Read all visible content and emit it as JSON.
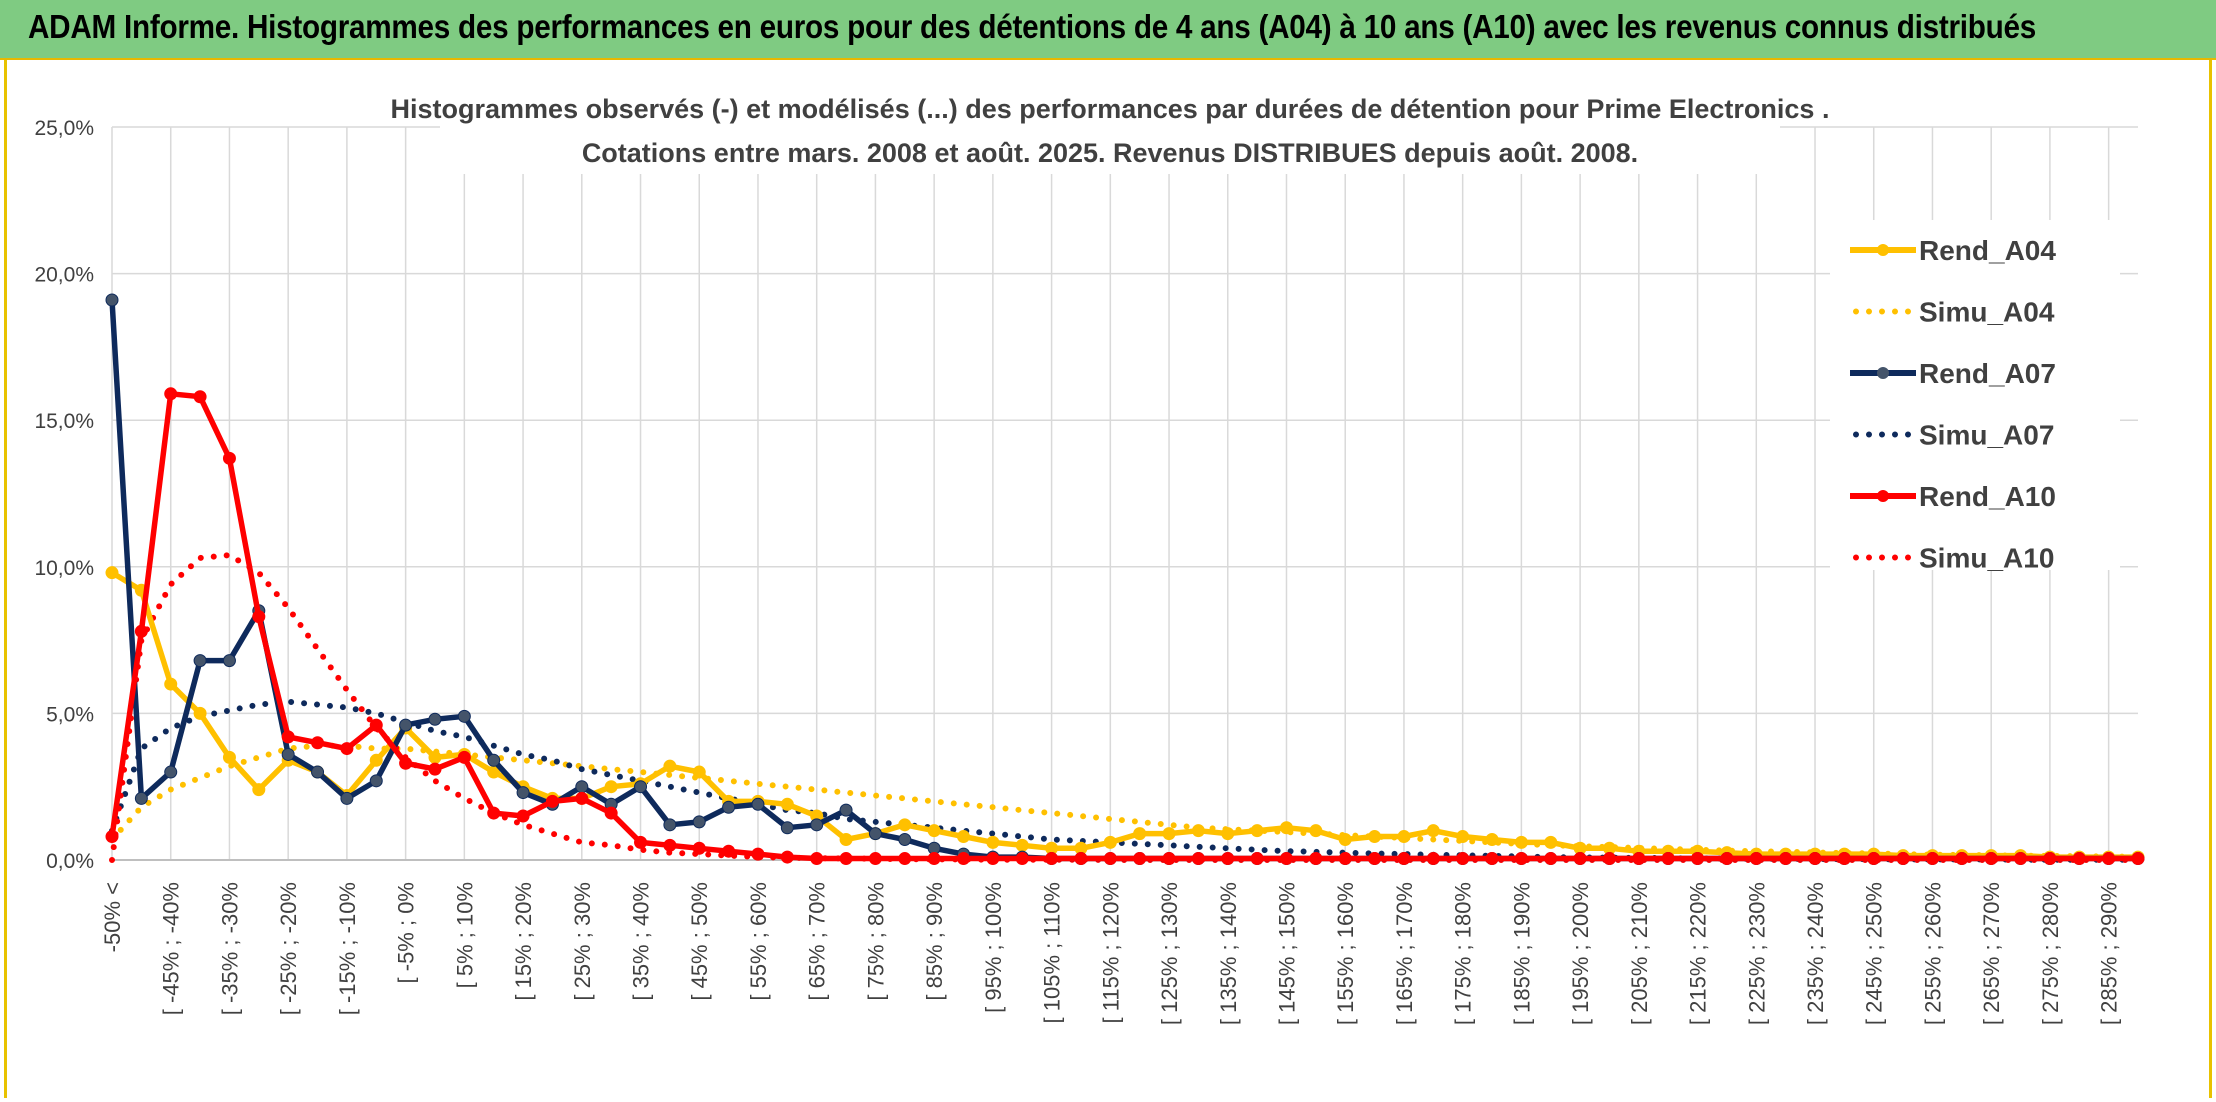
{
  "header": {
    "title": "ADAM Informe. Histogrammes des performances en euros pour des détentions de 4 ans (A04) à 10 ans (A10) avec les revenus connus distribués"
  },
  "chart_data": {
    "type": "line",
    "title_line1": "Histogrammes observés (-) et modélisés (...) des performances par durées de détention pour Prime Electronics .",
    "title_line2": "Cotations entre mars. 2008 et août. 2025. Revenus DISTRIBUES depuis août. 2008.",
    "ylim": [
      0,
      25
    ],
    "y_ticks": [
      "0,0%",
      "5,0%",
      "10,0%",
      "15,0%",
      "20,0%",
      "25,0%"
    ],
    "y_tick_values": [
      0,
      5,
      10,
      15,
      20,
      25
    ],
    "grid": true,
    "legend_position": "right",
    "x_labels": [
      "-50% <",
      "[ -45% ; -40%",
      "[ -35% ; -30%",
      "[ -25% ; -20%",
      "[ -15% ; -10%",
      "[ -5% ; 0%",
      "[ 5% ; 10%",
      "[ 15% ; 20%",
      "[ 25% ; 30%",
      "[ 35% ; 40%",
      "[ 45% ; 50%",
      "[ 55% ; 60%",
      "[ 65% ; 70%",
      "[ 75% ; 80%",
      "[ 85% ; 90%",
      "[ 95% ; 100%",
      "[ 105% ; 110%",
      "[ 115% ; 120%",
      "[ 125% ; 130%",
      "[ 135% ; 140%",
      "[ 145% ; 150%",
      "[ 155% ; 160%",
      "[ 165% ; 170%",
      "[ 175% ; 180%",
      "[ 185% ; 190%",
      "[ 195% ; 200%",
      "[ 205% ; 210%",
      "[ 215% ; 220%",
      "[ 225% ; 230%",
      "[ 235% ; 240%",
      "[ 245% ; 250%",
      "[ 255% ; 260%",
      "[ 265% ; 270%",
      "[ 275% ; 280%",
      "[ 285% ; 290%"
    ],
    "series": [
      {
        "name": "Rend_A04",
        "style": "solid",
        "color": "#ffc000",
        "values": [
          9.8,
          9.2,
          6.0,
          5.0,
          3.5,
          2.4,
          3.4,
          3.0,
          2.2,
          3.4,
          4.5,
          3.5,
          3.6,
          3.0,
          2.5,
          2.1,
          2.1,
          2.5,
          2.6,
          3.2,
          3.0,
          2.0,
          2.0,
          1.9,
          1.5,
          0.7,
          0.9,
          1.2,
          1.0,
          0.8,
          0.6,
          0.5,
          0.4,
          0.4,
          0.6,
          0.9,
          0.9,
          1.0,
          0.9,
          1.0,
          1.1,
          1.0,
          0.7,
          0.8,
          0.8,
          1.0,
          0.8,
          0.7,
          0.6,
          0.6,
          0.4,
          0.4,
          0.3,
          0.3,
          0.3,
          0.25,
          0.2,
          0.2,
          0.2,
          0.2,
          0.2,
          0.15,
          0.15,
          0.15,
          0.15,
          0.15,
          0.1,
          0.1,
          0.1,
          0.1
        ]
      },
      {
        "name": "Simu_A04",
        "style": "dotted",
        "color": "#ffc000",
        "values": [
          0.7,
          1.8,
          2.4,
          2.8,
          3.2,
          3.5,
          3.8,
          3.9,
          3.9,
          3.8,
          3.8,
          3.7,
          3.6,
          3.5,
          3.4,
          3.3,
          3.2,
          3.1,
          3.0,
          2.9,
          2.8,
          2.7,
          2.6,
          2.5,
          2.4,
          2.3,
          2.2,
          2.1,
          2.0,
          1.9,
          1.8,
          1.7,
          1.6,
          1.5,
          1.4,
          1.3,
          1.2,
          1.1,
          1.05,
          1.0,
          0.95,
          0.9,
          0.85,
          0.8,
          0.75,
          0.7,
          0.65,
          0.6,
          0.55,
          0.5,
          0.47,
          0.44,
          0.41,
          0.38,
          0.35,
          0.32,
          0.3,
          0.28,
          0.26,
          0.24,
          0.22,
          0.2,
          0.18,
          0.17,
          0.16,
          0.15,
          0.14,
          0.13,
          0.12,
          0.11
        ]
      },
      {
        "name": "Rend_A07",
        "style": "solid",
        "color": "#0e2a5c",
        "values": [
          19.1,
          2.1,
          3.0,
          6.8,
          6.8,
          8.5,
          3.6,
          3.0,
          2.1,
          2.7,
          4.6,
          4.8,
          4.9,
          3.4,
          2.3,
          1.9,
          2.5,
          1.9,
          2.5,
          1.2,
          1.3,
          1.8,
          1.9,
          1.1,
          1.2,
          1.7,
          0.9,
          0.7,
          0.4,
          0.2,
          0.1,
          0.1,
          0.05,
          0.05,
          0.05,
          0.05,
          0.05,
          0.05,
          0.05,
          0.05,
          0.05,
          0.05,
          0.05,
          0.05,
          0.05,
          0.05,
          0.05,
          0.05,
          0.05,
          0.05,
          0.05,
          0.05,
          0.05,
          0.05,
          0.05,
          0.05,
          0.05,
          0.05,
          0.05,
          0.05,
          0.05,
          0.05,
          0.05,
          0.05,
          0.05,
          0.05,
          0.05,
          0.05,
          0.05,
          0.05
        ]
      },
      {
        "name": "Simu_A07",
        "style": "dotted",
        "color": "#0e2a5c",
        "values": [
          1.0,
          3.8,
          4.5,
          4.9,
          5.1,
          5.3,
          5.4,
          5.3,
          5.2,
          5.0,
          4.7,
          4.4,
          4.2,
          3.9,
          3.6,
          3.4,
          3.1,
          2.9,
          2.7,
          2.5,
          2.3,
          2.1,
          1.9,
          1.7,
          1.6,
          1.4,
          1.3,
          1.2,
          1.1,
          1.0,
          0.9,
          0.8,
          0.7,
          0.65,
          0.6,
          0.55,
          0.5,
          0.45,
          0.4,
          0.35,
          0.3,
          0.28,
          0.25,
          0.22,
          0.2,
          0.18,
          0.16,
          0.14,
          0.12,
          0.1,
          0.09,
          0.08,
          0.07,
          0.06,
          0.05,
          0.05,
          0.04,
          0.04,
          0.03,
          0.03,
          0.03,
          0.02,
          0.02,
          0.02,
          0.02,
          0.01,
          0.01,
          0.01,
          0.01,
          0.01
        ]
      },
      {
        "name": "Rend_A10",
        "style": "solid",
        "color": "#ff0000",
        "values": [
          0.8,
          7.8,
          15.9,
          15.8,
          13.7,
          8.3,
          4.2,
          4.0,
          3.8,
          4.6,
          3.3,
          3.1,
          3.5,
          1.6,
          1.5,
          2.0,
          2.1,
          1.6,
          0.6,
          0.5,
          0.4,
          0.3,
          0.2,
          0.1,
          0.05,
          0.05,
          0.05,
          0.05,
          0.05,
          0.05,
          0.05,
          0.05,
          0.05,
          0.05,
          0.05,
          0.05,
          0.05,
          0.05,
          0.05,
          0.05,
          0.05,
          0.05,
          0.05,
          0.05,
          0.05,
          0.05,
          0.05,
          0.05,
          0.05,
          0.05,
          0.05,
          0.05,
          0.05,
          0.05,
          0.05,
          0.05,
          0.05,
          0.05,
          0.05,
          0.05,
          0.05,
          0.05,
          0.05,
          0.05,
          0.05,
          0.05,
          0.05,
          0.05,
          0.05,
          0.05
        ]
      },
      {
        "name": "Simu_A10",
        "style": "dotted",
        "color": "#ff0000",
        "values": [
          0.0,
          7.5,
          9.4,
          10.3,
          10.4,
          9.8,
          8.6,
          7.2,
          5.8,
          4.5,
          3.5,
          2.7,
          2.1,
          1.6,
          1.2,
          0.9,
          0.6,
          0.5,
          0.35,
          0.25,
          0.2,
          0.15,
          0.1,
          0.08,
          0.06,
          0.05,
          0.04,
          0.03,
          0.02,
          0.02,
          0.01,
          0.01,
          0.01,
          0.01,
          0.0,
          0.0,
          0.0,
          0.0,
          0.0,
          0.0,
          0.0,
          0.0,
          0.0,
          0.0,
          0.0,
          0.0,
          0.0,
          0.0,
          0.0,
          0.0,
          0.0,
          0.0,
          0.0,
          0.0,
          0.0,
          0.0,
          0.0,
          0.0,
          0.0,
          0.0,
          0.0,
          0.0,
          0.0,
          0.0,
          0.0,
          0.0,
          0.0,
          0.0,
          0.0,
          0.0
        ]
      }
    ]
  }
}
